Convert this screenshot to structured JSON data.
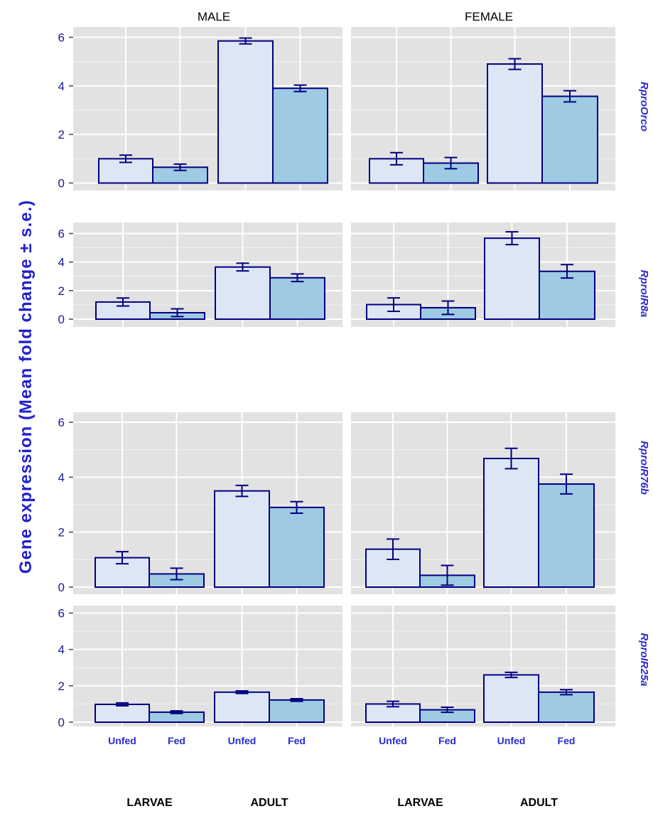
{
  "columns": [
    "MALE",
    "FEMALE"
  ],
  "y_label": "Gene expression (Mean fold change ± s.e.)",
  "genes": [
    "RproOrco",
    "RproIR8a",
    "RproIR76b",
    "RproIR25a"
  ],
  "x_groups": [
    "LARVAE",
    "ADULT"
  ],
  "x_conditions": [
    "Unfed",
    "Fed"
  ],
  "colors": {
    "unfed": "#dde6f4",
    "fed": "#9ecbe3",
    "bar_edge": "#000080",
    "panel_bg": "#e2e2e2",
    "grid": "#ffffff"
  },
  "chart_data": {
    "type": "bar",
    "layout": "faceted grid: rows = genes, columns = sex",
    "categories": [
      "Unfed",
      "Fed",
      "Unfed",
      "Fed"
    ],
    "category_groups": [
      "LARVAE",
      "LARVAE",
      "ADULT",
      "ADULT"
    ],
    "y_ticks": [
      0,
      2,
      4,
      6
    ],
    "ylim": [
      0,
      6.5
    ],
    "panels": [
      {
        "row": "RproOrco",
        "col": "MALE",
        "values": [
          1.0,
          0.65,
          5.85,
          3.9
        ],
        "errors": [
          0.15,
          0.13,
          0.12,
          0.13
        ]
      },
      {
        "row": "RproOrco",
        "col": "FEMALE",
        "values": [
          1.0,
          0.82,
          4.9,
          3.57
        ],
        "errors": [
          0.25,
          0.23,
          0.22,
          0.23
        ]
      },
      {
        "row": "RproIR8a",
        "col": "MALE",
        "values": [
          1.2,
          0.45,
          3.65,
          2.9
        ],
        "errors": [
          0.28,
          0.27,
          0.27,
          0.27
        ]
      },
      {
        "row": "RproIR8a",
        "col": "FEMALE",
        "values": [
          1.02,
          0.8,
          5.67,
          3.35
        ],
        "errors": [
          0.47,
          0.47,
          0.45,
          0.47
        ]
      },
      {
        "row": "RproIR76b",
        "col": "MALE",
        "values": [
          1.07,
          0.48,
          3.5,
          2.9
        ],
        "errors": [
          0.22,
          0.21,
          0.2,
          0.21
        ]
      },
      {
        "row": "RproIR76b",
        "col": "FEMALE",
        "values": [
          1.38,
          0.43,
          4.68,
          3.75
        ],
        "errors": [
          0.37,
          0.36,
          0.37,
          0.36
        ]
      },
      {
        "row": "RproIR25a",
        "col": "MALE",
        "values": [
          0.98,
          0.55,
          1.65,
          1.22
        ],
        "errors": [
          0.08,
          0.07,
          0.07,
          0.07
        ]
      },
      {
        "row": "RproIR25a",
        "col": "FEMALE",
        "values": [
          1.0,
          0.68,
          2.6,
          1.65
        ],
        "errors": [
          0.15,
          0.14,
          0.14,
          0.14
        ]
      }
    ]
  }
}
